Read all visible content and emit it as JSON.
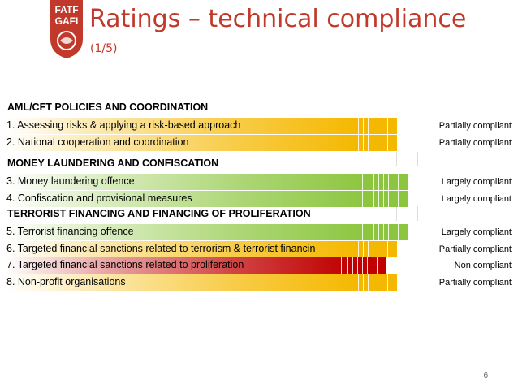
{
  "logo": {
    "line1": "FATF",
    "line2": "GAFI"
  },
  "title": "Ratings – technical compliance",
  "subtitle": "(1/5)",
  "sections": [
    "AML/CFT POLICIES AND COORDINATION",
    "MONEY LAUNDERING AND CONFISCATION",
    "TERRORIST FINANCING AND FINANCING OF PROLIFERATION"
  ],
  "rows": [
    {
      "label": "1. Assessing risks & applying a risk-based approach",
      "rating": "Partially compliant",
      "level": "partial"
    },
    {
      "label": "2. National cooperation and coordination",
      "rating": "Partially compliant",
      "level": "partial"
    },
    {
      "label": "3. Money laundering offence",
      "rating": "Largely compliant",
      "level": "largely"
    },
    {
      "label": "4. Confiscation and provisional measures",
      "rating": "Largely compliant",
      "level": "largely"
    },
    {
      "label": "5. Terrorist financing offence",
      "rating": "Largely compliant",
      "level": "largely"
    },
    {
      "label": "6. Targeted financial sanctions related to terrorism & terrorist financin",
      "rating": "Partially compliant",
      "level": "partial"
    },
    {
      "label": "7. Targeted financial sanctions related to proliferation",
      "rating": "Non compliant",
      "level": "non"
    },
    {
      "label": "8. Non-profit organisations",
      "rating": "Partially compliant",
      "level": "partial"
    }
  ],
  "page_number": "6",
  "colors": {
    "title": "#c0392b",
    "partial": "#f5b800",
    "largely": "#8cc63f",
    "non": "#c00000",
    "logo": "#c0392b"
  }
}
